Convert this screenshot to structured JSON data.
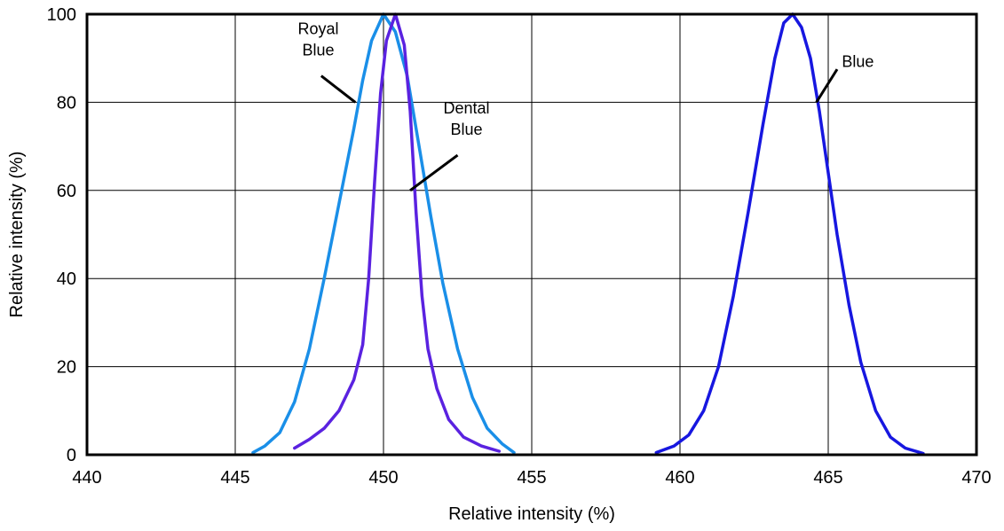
{
  "chart_data": {
    "type": "line",
    "title": "",
    "xlabel": "Relative intensity (%)",
    "ylabel": "Relative intensity (%)",
    "xlim": [
      440,
      470
    ],
    "ylim": [
      0,
      100
    ],
    "xticks": [
      440,
      445,
      450,
      455,
      460,
      465,
      470
    ],
    "yticks": [
      0,
      20,
      40,
      60,
      80,
      100
    ],
    "grid": true,
    "legend": "none",
    "series": [
      {
        "name": "Royal Blue",
        "color": "#1a8fe8",
        "points": [
          [
            445.6,
            0.5
          ],
          [
            446.0,
            2
          ],
          [
            446.5,
            5
          ],
          [
            447.0,
            12
          ],
          [
            447.5,
            24
          ],
          [
            448.0,
            40
          ],
          [
            448.5,
            57
          ],
          [
            449.0,
            74
          ],
          [
            449.3,
            85
          ],
          [
            449.6,
            94
          ],
          [
            450.0,
            100
          ],
          [
            450.4,
            96
          ],
          [
            450.8,
            86
          ],
          [
            451.2,
            70
          ],
          [
            451.6,
            54
          ],
          [
            452.0,
            39
          ],
          [
            452.5,
            24
          ],
          [
            453.0,
            13
          ],
          [
            453.5,
            6
          ],
          [
            454.0,
            2.5
          ],
          [
            454.4,
            0.5
          ]
        ]
      },
      {
        "name": "Dental Blue",
        "color": "#5a22e0",
        "points": [
          [
            447.0,
            1.5
          ],
          [
            447.5,
            3.5
          ],
          [
            448.0,
            6
          ],
          [
            448.5,
            10
          ],
          [
            449.0,
            17
          ],
          [
            449.3,
            25
          ],
          [
            449.5,
            40
          ],
          [
            449.7,
            62
          ],
          [
            449.9,
            82
          ],
          [
            450.1,
            94
          ],
          [
            450.4,
            100
          ],
          [
            450.7,
            93
          ],
          [
            450.9,
            78
          ],
          [
            451.1,
            55
          ],
          [
            451.3,
            36
          ],
          [
            451.5,
            24
          ],
          [
            451.8,
            15
          ],
          [
            452.2,
            8
          ],
          [
            452.7,
            4
          ],
          [
            453.3,
            2
          ],
          [
            453.9,
            0.8
          ]
        ]
      },
      {
        "name": "Blue",
        "color": "#1717e0",
        "points": [
          [
            459.2,
            0.5
          ],
          [
            459.8,
            2
          ],
          [
            460.3,
            4.5
          ],
          [
            460.8,
            10
          ],
          [
            461.3,
            20
          ],
          [
            461.8,
            36
          ],
          [
            462.3,
            55
          ],
          [
            462.8,
            75
          ],
          [
            463.2,
            90
          ],
          [
            463.5,
            98
          ],
          [
            463.8,
            100
          ],
          [
            464.1,
            97
          ],
          [
            464.4,
            90
          ],
          [
            464.7,
            78
          ],
          [
            465.0,
            64
          ],
          [
            465.3,
            50
          ],
          [
            465.7,
            34
          ],
          [
            466.1,
            21
          ],
          [
            466.6,
            10
          ],
          [
            467.1,
            4
          ],
          [
            467.6,
            1.5
          ],
          [
            468.2,
            0.3
          ]
        ]
      }
    ],
    "annotations": [
      {
        "lines": [
          "Royal",
          "Blue"
        ],
        "x": 447.8,
        "y": 95.5,
        "lx1": 447.9,
        "ly1": 86,
        "lx2": 449.05,
        "ly2": 80
      },
      {
        "lines": [
          "Dental",
          "Blue"
        ],
        "x": 452.8,
        "y": 77.5,
        "lx1": 452.5,
        "ly1": 68,
        "lx2": 450.9,
        "ly2": 60
      },
      {
        "lines": [
          "Blue"
        ],
        "x": 466.0,
        "y": 88,
        "lx1": 465.3,
        "ly1": 87.5,
        "lx2": 464.6,
        "ly2": 80
      }
    ]
  }
}
